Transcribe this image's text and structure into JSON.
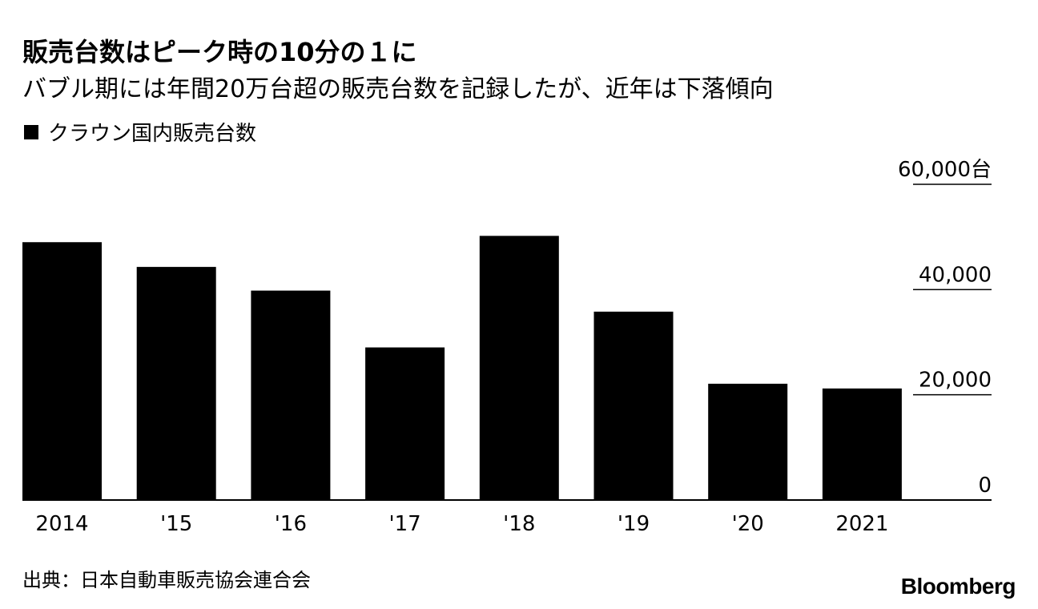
{
  "title": "販売台数はピーク時の10分の１に",
  "subtitle": "バブル期には年間20万台超の販売台数を記録したが、近年は下落傾向",
  "legend": {
    "label": "クラウン国内販売台数",
    "color": "#000000"
  },
  "source": "出典：日本自動車販売協会連合会",
  "logo": "Bloomberg",
  "chart_data": {
    "type": "bar",
    "categories": [
      "2014",
      "'15",
      "'16",
      "'17",
      "'18",
      "'19",
      "'20",
      "2021"
    ],
    "series": [
      {
        "name": "クラウン国内販売台数",
        "color": "#000000",
        "values": [
          49000,
          44300,
          39800,
          29000,
          50200,
          35800,
          22100,
          21200
        ]
      }
    ],
    "ylim": [
      0,
      60000
    ],
    "yticks": [
      0,
      20000,
      40000,
      60000
    ],
    "ytick_labels": [
      "0",
      "20,000",
      "40,000",
      "60,000台"
    ],
    "grid": true,
    "legend_position": "top-left"
  }
}
